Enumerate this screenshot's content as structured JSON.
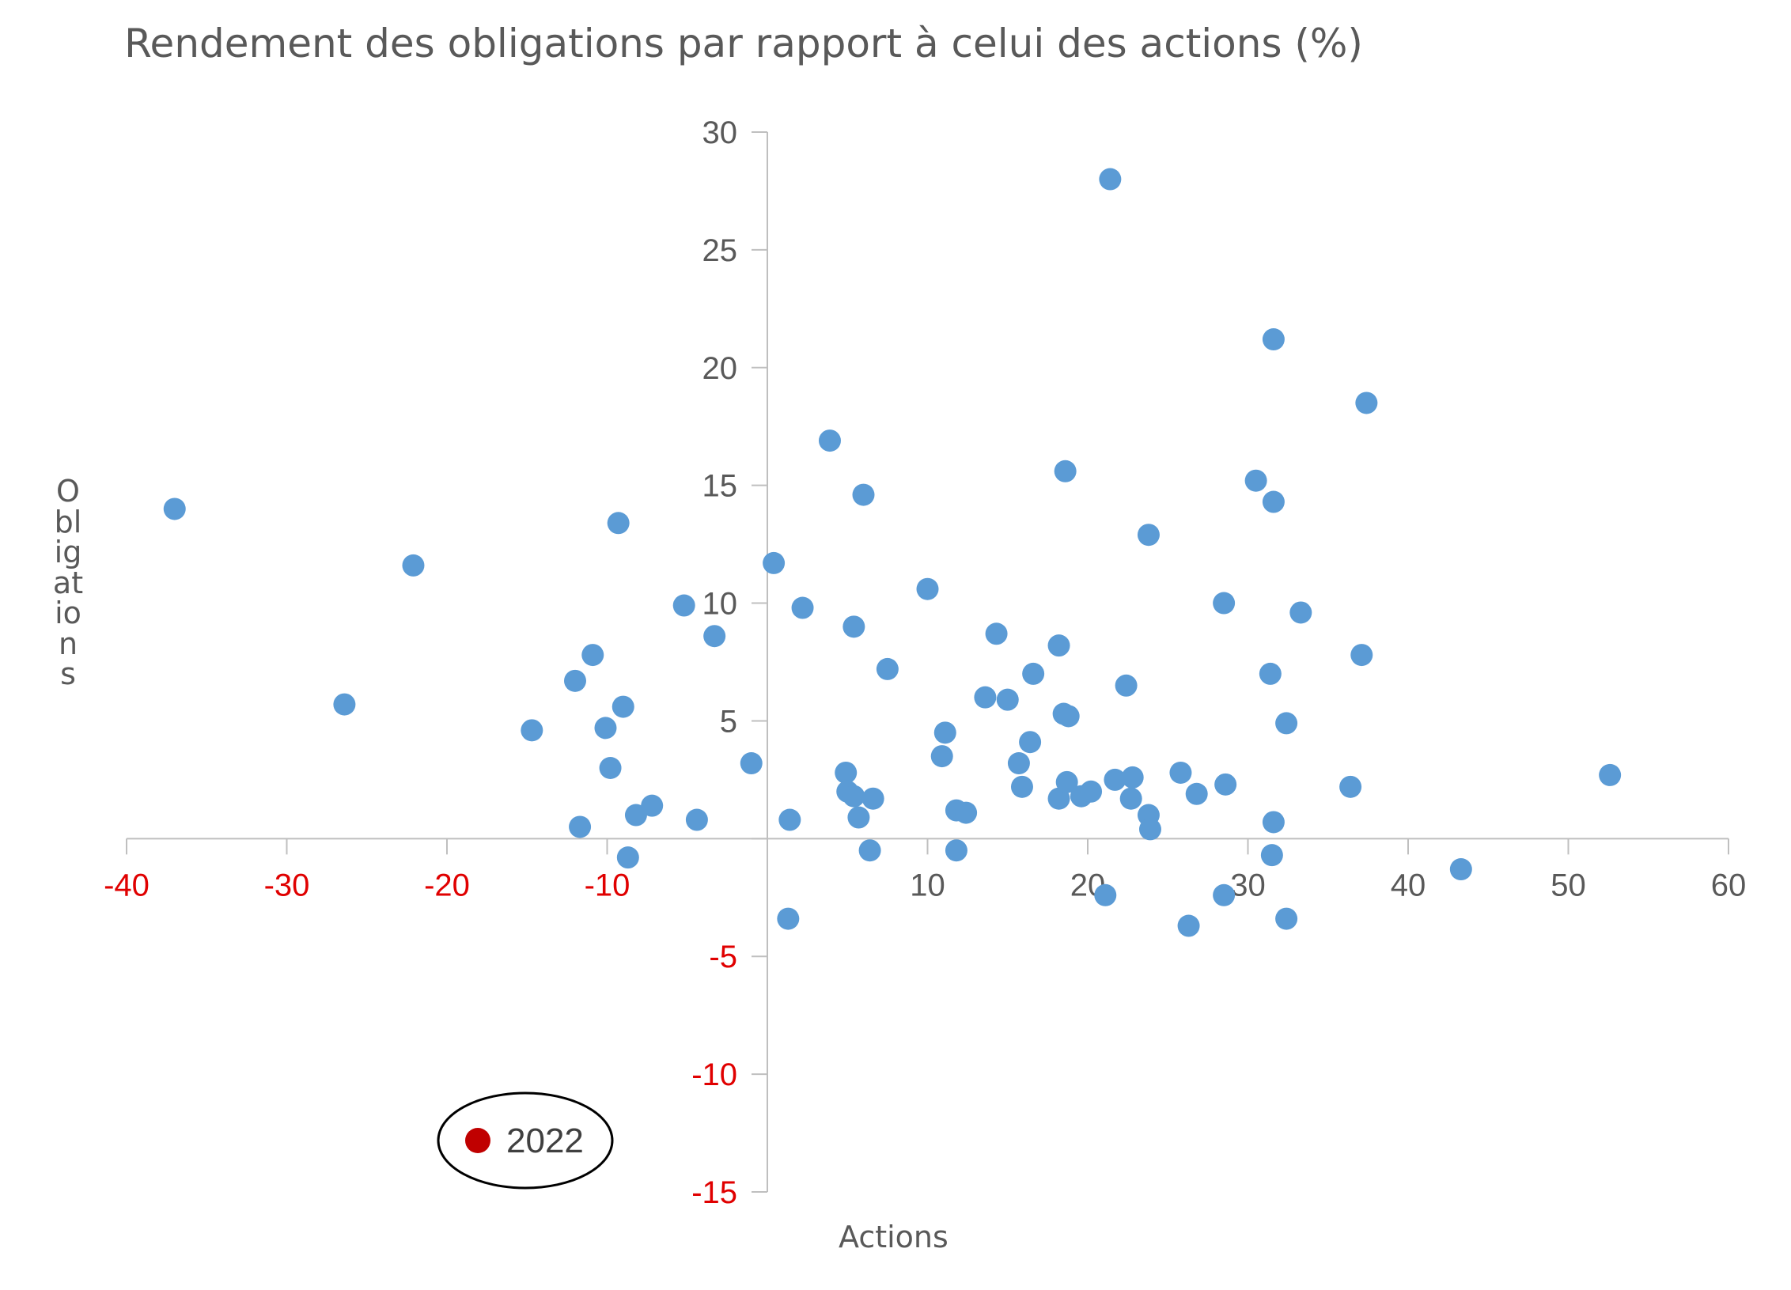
{
  "chart_data": {
    "type": "scatter",
    "title": "Rendement des obligations par rapport à celui des actions (%)",
    "xlabel": "Actions",
    "ylabel": "Obligations",
    "xlim": [
      -40,
      60
    ],
    "ylim": [
      -15,
      30
    ],
    "x_ticks": [
      "-40",
      "-30",
      "-20",
      "-10",
      "10",
      "20",
      "30",
      "40",
      "50",
      "60"
    ],
    "x_tick_values": [
      -40,
      -30,
      -20,
      -10,
      10,
      20,
      30,
      40,
      50,
      60
    ],
    "y_ticks": [
      "30",
      "25",
      "20",
      "15",
      "10",
      "5",
      "-5",
      "-10",
      "-15"
    ],
    "y_tick_values": [
      30,
      25,
      20,
      15,
      10,
      5,
      -5,
      -10,
      -15
    ],
    "negative_tick_color": "#e00000",
    "positive_tick_color": "#595959",
    "axis_color": "#bfbfbf",
    "grid": false,
    "series": [
      {
        "color": "#5b9bd5",
        "points": [
          [
            -37.0,
            14.0
          ],
          [
            -26.4,
            5.7
          ],
          [
            -22.1,
            11.6
          ],
          [
            -14.7,
            4.6
          ],
          [
            -12.0,
            6.7
          ],
          [
            -11.7,
            0.5
          ],
          [
            -10.9,
            7.8
          ],
          [
            -10.1,
            4.7
          ],
          [
            -9.8,
            3.0
          ],
          [
            -9.3,
            13.4
          ],
          [
            -9.0,
            5.6
          ],
          [
            -8.7,
            -0.8
          ],
          [
            -8.2,
            1.0
          ],
          [
            -7.2,
            1.4
          ],
          [
            -5.2,
            9.9
          ],
          [
            -4.4,
            0.8
          ],
          [
            -3.3,
            8.6
          ],
          [
            -1.0,
            3.2
          ],
          [
            0.4,
            11.7
          ],
          [
            1.4,
            0.8
          ],
          [
            1.3,
            -3.4
          ],
          [
            2.2,
            9.8
          ],
          [
            3.9,
            16.9
          ],
          [
            4.9,
            2.8
          ],
          [
            5.0,
            2.0
          ],
          [
            5.4,
            1.8
          ],
          [
            5.4,
            9.0
          ],
          [
            5.7,
            0.9
          ],
          [
            6.0,
            14.6
          ],
          [
            6.6,
            1.7
          ],
          [
            6.4,
            -0.5
          ],
          [
            7.5,
            7.2
          ],
          [
            10.0,
            10.6
          ],
          [
            10.9,
            3.5
          ],
          [
            11.1,
            4.5
          ],
          [
            11.8,
            1.2
          ],
          [
            12.4,
            1.1
          ],
          [
            11.8,
            -0.5
          ],
          [
            14.3,
            8.7
          ],
          [
            13.6,
            6.0
          ],
          [
            15.0,
            5.9
          ],
          [
            15.7,
            3.2
          ],
          [
            15.9,
            2.2
          ],
          [
            16.4,
            4.1
          ],
          [
            16.6,
            7.0
          ],
          [
            18.2,
            8.2
          ],
          [
            18.2,
            1.7
          ],
          [
            18.7,
            2.4
          ],
          [
            18.5,
            5.3
          ],
          [
            18.8,
            5.2
          ],
          [
            18.6,
            15.6
          ],
          [
            19.6,
            1.8
          ],
          [
            20.2,
            2.0
          ],
          [
            21.1,
            -2.4
          ],
          [
            21.4,
            28.0
          ],
          [
            21.7,
            2.5
          ],
          [
            22.4,
            6.5
          ],
          [
            22.7,
            1.7
          ],
          [
            22.8,
            2.6
          ],
          [
            23.8,
            1.0
          ],
          [
            23.9,
            0.4
          ],
          [
            23.8,
            12.9
          ],
          [
            25.8,
            2.8
          ],
          [
            26.3,
            -3.7
          ],
          [
            26.8,
            1.9
          ],
          [
            28.5,
            10.0
          ],
          [
            28.6,
            2.3
          ],
          [
            28.5,
            -2.4
          ],
          [
            30.5,
            15.2
          ],
          [
            31.4,
            7.0
          ],
          [
            31.5,
            -0.7
          ],
          [
            31.6,
            0.7
          ],
          [
            31.6,
            14.3
          ],
          [
            31.6,
            21.2
          ],
          [
            32.4,
            4.9
          ],
          [
            32.4,
            -3.4
          ],
          [
            33.3,
            9.6
          ],
          [
            36.4,
            2.2
          ],
          [
            37.1,
            7.8
          ],
          [
            37.4,
            18.5
          ],
          [
            43.3,
            -1.3
          ],
          [
            52.6,
            2.7
          ]
        ]
      }
    ],
    "annotation": {
      "label": "2022",
      "color": "#c00000",
      "ellipse_color": "#000000"
    }
  }
}
